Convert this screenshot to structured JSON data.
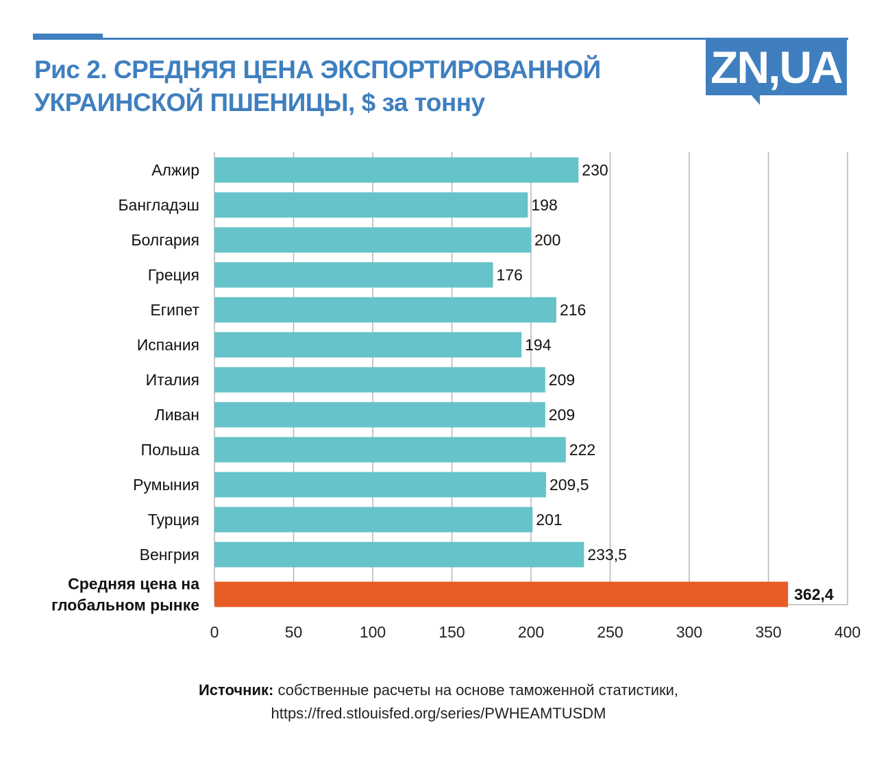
{
  "header": {
    "title_line1": "Рис 2. СРЕДНЯЯ ЦЕНА ЭКСПОРТИРОВАННОЙ",
    "title_line2": "УКРАИНСКОЙ ПШЕНИЦЫ, $ за тонну",
    "logo": "ZN,UA"
  },
  "source": {
    "label": "Источник:",
    "text": " собственные расчеты на основе таможенной статистики,",
    "url": "https://fred.stlouisfed.org/series/PWHEAMTUSDM"
  },
  "colors": {
    "bar": "#66c3c9",
    "highlight": "#e85c26",
    "title": "#3f7fbf",
    "grid": "#b5b5b5"
  },
  "chart_data": {
    "type": "bar",
    "orientation": "horizontal",
    "title": "Рис 2. СРЕДНЯЯ ЦЕНА ЭКСПОРТИРОВАННОЙ УКРАИНСКОЙ ПШЕНИЦЫ, $ за тонну",
    "categories": [
      "Алжир",
      "Бангладэш",
      "Болгария",
      "Греция",
      "Египет",
      "Испания",
      "Италия",
      "Ливан",
      "Польша",
      "Румыния",
      "Турция",
      "Венгрия",
      "Средняя цена на глобальном рынке"
    ],
    "category_lines": [
      [
        "Алжир"
      ],
      [
        "Бангладэш"
      ],
      [
        "Болгария"
      ],
      [
        "Греция"
      ],
      [
        "Египет"
      ],
      [
        "Испания"
      ],
      [
        "Италия"
      ],
      [
        "Ливан"
      ],
      [
        "Польша"
      ],
      [
        "Румыния"
      ],
      [
        "Турция"
      ],
      [
        "Венгрия"
      ],
      [
        "Средняя цена на",
        "глобальном рынке"
      ]
    ],
    "values": [
      230,
      198,
      200,
      176,
      216,
      194,
      209,
      209,
      222,
      209.5,
      201,
      233.5,
      362.4
    ],
    "value_labels": [
      "230",
      "198",
      "200",
      "176",
      "216",
      "194",
      "209",
      "209",
      "222",
      "209,5",
      "201",
      "233,5",
      "362,4"
    ],
    "highlighted": [
      12
    ],
    "xlim": [
      0,
      400
    ],
    "xticks": [
      0,
      50,
      100,
      150,
      200,
      250,
      300,
      350,
      400
    ],
    "grid": true,
    "xlabel": "",
    "ylabel": ""
  }
}
